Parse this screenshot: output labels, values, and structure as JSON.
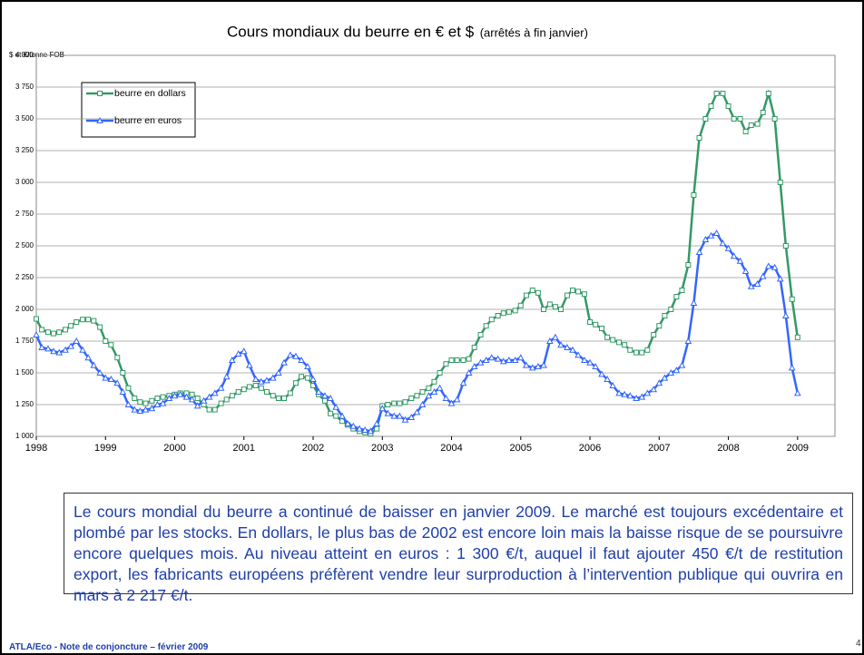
{
  "chart_data": {
    "type": "line",
    "title": "Cours mondiaux du beurre en € et $",
    "subtitle": "(arrêtés à fin janvier)",
    "y_label": "$ et €/tonne FOB",
    "x": [
      1998,
      1998.08,
      1998.17,
      1998.25,
      1998.33,
      1998.42,
      1998.5,
      1998.58,
      1998.67,
      1998.75,
      1998.83,
      1998.92,
      1999,
      1999.08,
      1999.17,
      1999.25,
      1999.33,
      1999.42,
      1999.5,
      1999.58,
      1999.67,
      1999.75,
      1999.83,
      1999.92,
      2000,
      2000.08,
      2000.17,
      2000.25,
      2000.33,
      2000.42,
      2000.5,
      2000.58,
      2000.67,
      2000.75,
      2000.83,
      2000.92,
      2001,
      2001.08,
      2001.17,
      2001.25,
      2001.33,
      2001.42,
      2001.5,
      2001.58,
      2001.67,
      2001.75,
      2001.83,
      2001.92,
      2002,
      2002.08,
      2002.17,
      2002.25,
      2002.33,
      2002.42,
      2002.5,
      2002.58,
      2002.67,
      2002.75,
      2002.83,
      2002.92,
      2003,
      2003.08,
      2003.17,
      2003.25,
      2003.33,
      2003.42,
      2003.5,
      2003.58,
      2003.67,
      2003.75,
      2003.83,
      2003.92,
      2004,
      2004.08,
      2004.17,
      2004.25,
      2004.33,
      2004.42,
      2004.5,
      2004.58,
      2004.67,
      2004.75,
      2004.83,
      2004.92,
      2005,
      2005.08,
      2005.17,
      2005.25,
      2005.33,
      2005.42,
      2005.5,
      2005.58,
      2005.67,
      2005.75,
      2005.83,
      2005.92,
      2006,
      2006.08,
      2006.17,
      2006.25,
      2006.33,
      2006.42,
      2006.5,
      2006.58,
      2006.67,
      2006.75,
      2006.83,
      2006.92,
      2007,
      2007.08,
      2007.17,
      2007.25,
      2007.33,
      2007.42,
      2007.5,
      2007.58,
      2007.67,
      2007.75,
      2007.83,
      2007.92,
      2008,
      2008.08,
      2008.17,
      2008.25,
      2008.33,
      2008.42,
      2008.5,
      2008.58,
      2008.67,
      2008.75,
      2008.83,
      2008.92,
      2009
    ],
    "series": [
      {
        "name": "beurre en dollars",
        "color": "#339966",
        "marker": "square",
        "values": [
          1925,
          1840,
          1820,
          1810,
          1820,
          1840,
          1870,
          1900,
          1920,
          1920,
          1910,
          1860,
          1750,
          1720,
          1620,
          1500,
          1380,
          1300,
          1270,
          1260,
          1280,
          1300,
          1310,
          1320,
          1330,
          1340,
          1340,
          1330,
          1300,
          1250,
          1210,
          1210,
          1260,
          1290,
          1320,
          1350,
          1370,
          1390,
          1400,
          1380,
          1350,
          1320,
          1300,
          1300,
          1340,
          1420,
          1470,
          1460,
          1400,
          1330,
          1280,
          1180,
          1160,
          1120,
          1090,
          1060,
          1040,
          1030,
          1020,
          1060,
          1240,
          1250,
          1260,
          1260,
          1270,
          1300,
          1320,
          1350,
          1380,
          1430,
          1500,
          1570,
          1600,
          1600,
          1600,
          1610,
          1700,
          1800,
          1870,
          1920,
          1950,
          1970,
          1980,
          1990,
          2030,
          2110,
          2150,
          2130,
          2000,
          2040,
          2020,
          2000,
          2110,
          2150,
          2140,
          2120,
          1900,
          1880,
          1850,
          1780,
          1760,
          1740,
          1720,
          1680,
          1660,
          1660,
          1680,
          1800,
          1870,
          1950,
          2000,
          2100,
          2150,
          2350,
          2900,
          3350,
          3500,
          3600,
          3700,
          3700,
          3600,
          3500,
          3500,
          3400,
          3450,
          3460,
          3550,
          3700,
          3500,
          3000,
          2500,
          2080,
          1780
        ]
      },
      {
        "name": "beurre en euros",
        "color": "#3366ff",
        "marker": "triangle",
        "values": [
          1800,
          1700,
          1690,
          1670,
          1660,
          1680,
          1710,
          1750,
          1680,
          1620,
          1560,
          1500,
          1460,
          1450,
          1420,
          1350,
          1250,
          1210,
          1200,
          1210,
          1220,
          1250,
          1260,
          1300,
          1320,
          1330,
          1310,
          1290,
          1240,
          1280,
          1310,
          1340,
          1380,
          1470,
          1600,
          1650,
          1670,
          1560,
          1450,
          1430,
          1440,
          1460,
          1500,
          1580,
          1640,
          1630,
          1600,
          1550,
          1450,
          1350,
          1320,
          1300,
          1230,
          1160,
          1100,
          1080,
          1060,
          1050,
          1040,
          1100,
          1220,
          1180,
          1160,
          1160,
          1130,
          1150,
          1190,
          1250,
          1320,
          1350,
          1380,
          1300,
          1260,
          1290,
          1420,
          1500,
          1550,
          1580,
          1600,
          1620,
          1610,
          1590,
          1600,
          1600,
          1620,
          1560,
          1540,
          1550,
          1560,
          1750,
          1780,
          1720,
          1700,
          1680,
          1640,
          1600,
          1580,
          1550,
          1490,
          1450,
          1400,
          1340,
          1330,
          1320,
          1300,
          1310,
          1340,
          1370,
          1420,
          1460,
          1500,
          1520,
          1560,
          1750,
          2050,
          2450,
          2550,
          2580,
          2600,
          2520,
          2480,
          2420,
          2380,
          2300,
          2180,
          2200,
          2260,
          2340,
          2330,
          2240,
          1950,
          1540,
          1340
        ]
      }
    ],
    "xlim": [
      1998,
      2009.54
    ],
    "xticks": [
      1998,
      1999,
      2000,
      2001,
      2002,
      2003,
      2004,
      2005,
      2006,
      2007,
      2008,
      2009
    ],
    "ylim": [
      1000,
      4000
    ],
    "yticks": [
      {
        "value": 1000,
        "label": "1 000"
      },
      {
        "value": 1250,
        "label": "1 250"
      },
      {
        "value": 1500,
        "label": "1 500"
      },
      {
        "value": 1750,
        "label": "1 750"
      },
      {
        "value": 2000,
        "label": "2 000"
      },
      {
        "value": 2250,
        "label": "2 250"
      },
      {
        "value": 2500,
        "label": "2 500"
      },
      {
        "value": 2750,
        "label": "2 750"
      },
      {
        "value": 3000,
        "label": "3 000"
      },
      {
        "value": 3250,
        "label": "3 250"
      },
      {
        "value": 3500,
        "label": "3 500"
      },
      {
        "value": 3750,
        "label": "3 750"
      },
      {
        "value": 4000,
        "label": "4 000"
      }
    ],
    "grid": true,
    "legend": "upper left"
  },
  "note": "Le cours mondial du beurre a continué de baisser en janvier 2009. Le marché est toujours excédentaire et plombé par les stocks. En dollars, le plus bas de 2002 est encore loin mais la baisse risque de se poursuivre encore quelques mois. Au niveau atteint en euros : 1 300 €/t, auquel il faut ajouter 450 €/t de restitution export, les fabricants européens préfèrent vendre leur surproduction à l’intervention publique qui ouvrira en mars à 2 217 €/t.",
  "footer": "ATLA/Eco - Note de conjoncture – février 2009",
  "page_number": "4"
}
